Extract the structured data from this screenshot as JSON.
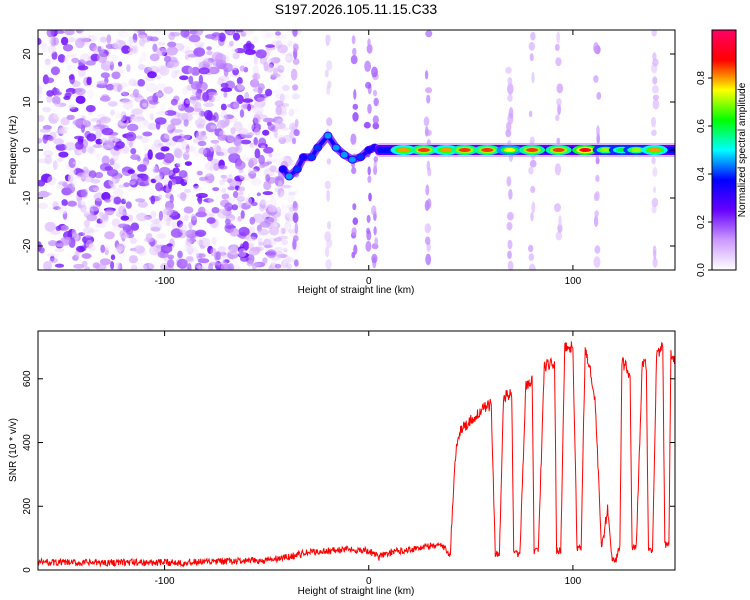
{
  "figure": {
    "title": "S197.2026.105.11.15.C33"
  },
  "chart_data": [
    {
      "type": "heatmap",
      "title": "S197.2026.105.11.15.C33",
      "xlabel": "Height of straight line (km)",
      "ylabel": "Frequency (Hz)",
      "xlim": [
        -162,
        150
      ],
      "ylim": [
        -25,
        25
      ],
      "x_ticks": [
        -100,
        0,
        100
      ],
      "y_ticks": [
        -20,
        -10,
        0,
        10,
        20
      ],
      "colorbar": {
        "label": "Normalized spectral amplitude",
        "range": [
          0,
          1
        ],
        "ticks": [
          0.0,
          0.2,
          0.4,
          0.6,
          0.8
        ],
        "colors": [
          "#ffffff",
          "#cc99ff",
          "#6600ff",
          "#0000ff",
          "#00ffff",
          "#00ff00",
          "#ffff00",
          "#ff0000",
          "#ff0066"
        ]
      },
      "noise_region": {
        "x_from": -162,
        "x_to": -40,
        "amplitude_max": 0.25
      },
      "ridge": [
        {
          "x": -42,
          "f": -4.0,
          "amp": 0.35
        },
        {
          "x": -39,
          "f": -5.5,
          "amp": 0.45
        },
        {
          "x": -35,
          "f": -4.0,
          "amp": 0.4
        },
        {
          "x": -32,
          "f": -1.5,
          "amp": 0.35
        },
        {
          "x": -28,
          "f": -1.5,
          "amp": 0.4
        },
        {
          "x": -25,
          "f": 0.5,
          "amp": 0.4
        },
        {
          "x": -20,
          "f": 3.0,
          "amp": 0.45
        },
        {
          "x": -16,
          "f": 0.5,
          "amp": 0.45
        },
        {
          "x": -12,
          "f": -1.0,
          "amp": 0.45
        },
        {
          "x": -8,
          "f": -2.0,
          "amp": 0.45
        },
        {
          "x": -4,
          "f": -1.5,
          "amp": 0.4
        },
        {
          "x": 0,
          "f": 0.0,
          "amp": 0.35
        },
        {
          "x": 3,
          "f": 0.5,
          "amp": 0.35
        }
      ],
      "line": {
        "x_from": 3,
        "x_to": 150,
        "f": 0.0
      },
      "peaks": [
        {
          "x": 17,
          "amp": 0.8
        },
        {
          "x": 27,
          "amp": 0.85
        },
        {
          "x": 38,
          "amp": 0.8
        },
        {
          "x": 47,
          "amp": 0.85
        },
        {
          "x": 58,
          "amp": 0.85
        },
        {
          "x": 69,
          "amp": 0.75
        },
        {
          "x": 80,
          "amp": 0.85
        },
        {
          "x": 93,
          "amp": 0.85
        },
        {
          "x": 106,
          "amp": 0.9
        },
        {
          "x": 116,
          "amp": 0.7
        },
        {
          "x": 124,
          "amp": 0.6
        },
        {
          "x": 131,
          "amp": 0.7
        },
        {
          "x": 140,
          "amp": 0.8
        }
      ],
      "vertical_streaks": [
        {
          "x": -36,
          "amp": 0.2
        },
        {
          "x": -20,
          "amp": 0.1
        },
        {
          "x": -7,
          "amp": 0.2
        },
        {
          "x": 0,
          "amp": 0.22
        },
        {
          "x": 3,
          "amp": 0.2
        },
        {
          "x": 29,
          "amp": 0.15
        },
        {
          "x": 69,
          "amp": 0.12
        },
        {
          "x": 80,
          "amp": 0.12
        },
        {
          "x": 93,
          "amp": 0.12
        },
        {
          "x": 112,
          "amp": 0.15
        },
        {
          "x": 140,
          "amp": 0.1
        }
      ]
    },
    {
      "type": "line",
      "xlabel": "Height of straight line (km)",
      "ylabel": "SNR (10 * v/v)",
      "xlim": [
        -162,
        150
      ],
      "ylim": [
        0,
        750
      ],
      "x_ticks": [
        -100,
        0,
        100
      ],
      "y_ticks": [
        0,
        200,
        400,
        600
      ],
      "color": "#ff0000",
      "series": [
        {
          "name": "SNR",
          "x": [
            -162,
            -140,
            -120,
            -100,
            -80,
            -60,
            -50,
            -40,
            -30,
            -20,
            -10,
            0,
            5,
            10,
            20,
            30,
            35,
            38,
            40,
            41,
            43,
            45,
            50,
            55,
            60,
            62,
            64,
            66,
            70,
            71,
            74,
            77,
            80,
            81,
            83,
            86,
            91,
            92,
            94,
            96,
            100,
            102,
            104,
            106,
            108,
            111,
            114,
            116,
            117,
            119,
            121,
            123,
            124,
            126,
            128,
            129,
            131,
            134,
            136,
            137,
            139,
            141,
            144,
            145,
            147,
            148,
            150
          ],
          "y": [
            25,
            22,
            24,
            23,
            25,
            28,
            30,
            40,
            55,
            60,
            65,
            60,
            40,
            55,
            65,
            75,
            80,
            60,
            50,
            200,
            400,
            440,
            470,
            500,
            520,
            50,
            50,
            540,
            560,
            50,
            50,
            580,
            600,
            60,
            60,
            640,
            650,
            60,
            60,
            700,
            700,
            70,
            70,
            690,
            650,
            520,
            70,
            150,
            200,
            40,
            30,
            80,
            650,
            640,
            600,
            70,
            70,
            650,
            640,
            60,
            60,
            680,
            700,
            80,
            80,
            680,
            650
          ]
        }
      ]
    }
  ]
}
